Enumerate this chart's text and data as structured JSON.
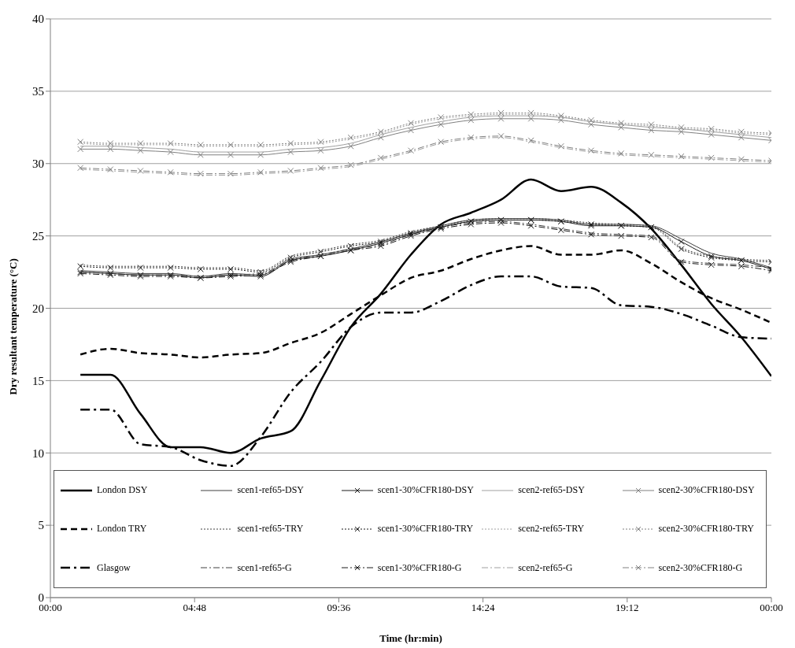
{
  "chart_data": {
    "type": "line",
    "xlabel": "Time (hr:min)",
    "ylabel": "Dry resultant temperature (°C)",
    "x": [
      1,
      2,
      3,
      4,
      5,
      6,
      7,
      8,
      9,
      10,
      11,
      12,
      13,
      14,
      15,
      16,
      17,
      18,
      19,
      20,
      21,
      22,
      23,
      24
    ],
    "xlim": [
      0,
      24
    ],
    "xticks": [
      {
        "value": 0,
        "label": "00:00"
      },
      {
        "value": 4.8,
        "label": "04:48"
      },
      {
        "value": 9.6,
        "label": "09:36"
      },
      {
        "value": 14.4,
        "label": "14:24"
      },
      {
        "value": 19.2,
        "label": "19:12"
      },
      {
        "value": 24,
        "label": "00:00"
      }
    ],
    "ylim": [
      0,
      40
    ],
    "yticks": [
      0,
      5,
      10,
      15,
      20,
      25,
      30,
      35,
      40
    ],
    "grid": "y",
    "legend": "bottom",
    "series": [
      {
        "name": "London DSY",
        "color": "#000000",
        "line_style": "solid",
        "marker": "none",
        "values": [
          15.4,
          15.4,
          12.7,
          10.4,
          10.4,
          10.0,
          11.0,
          11.5,
          15.0,
          18.7,
          21.0,
          23.7,
          25.8,
          26.6,
          27.5,
          28.9,
          28.1,
          28.4,
          27.3,
          25.5,
          23.0,
          20.3,
          18.0,
          15.3
        ]
      },
      {
        "name": "London TRY",
        "color": "#000000",
        "line_style": "dashed",
        "marker": "none",
        "values": [
          16.8,
          17.2,
          16.9,
          16.8,
          16.6,
          16.8,
          16.9,
          17.6,
          18.3,
          19.6,
          20.9,
          22.1,
          22.6,
          23.4,
          24.0,
          24.3,
          23.7,
          23.7,
          24.0,
          23.1,
          21.8,
          20.7,
          19.9,
          19.0
        ]
      },
      {
        "name": "Glasgow",
        "color": "#000000",
        "line_style": "dashdot",
        "marker": "none",
        "values": [
          13.0,
          13.0,
          10.6,
          10.4,
          9.5,
          9.1,
          11.1,
          14.2,
          16.3,
          18.7,
          19.7,
          19.7,
          20.5,
          21.6,
          22.2,
          22.2,
          21.5,
          21.4,
          20.2,
          20.1,
          19.6,
          18.8,
          18.0,
          17.9
        ]
      },
      {
        "name": "scen1-ref65-DSY",
        "color": "#404040",
        "line_style": "solid",
        "marker": "none",
        "values": [
          22.6,
          22.5,
          22.4,
          22.4,
          22.2,
          22.4,
          22.3,
          23.4,
          23.7,
          24.1,
          24.6,
          25.2,
          25.7,
          26.1,
          26.2,
          26.2,
          26.1,
          25.8,
          25.8,
          25.7,
          24.8,
          23.8,
          23.4,
          22.8
        ]
      },
      {
        "name": "scen1-ref65-TRY",
        "color": "#404040",
        "line_style": "dotted",
        "marker": "none",
        "values": [
          23.0,
          22.9,
          22.9,
          22.9,
          22.8,
          22.8,
          22.6,
          23.6,
          24.0,
          24.4,
          24.7,
          25.3,
          25.7,
          26.1,
          26.2,
          26.2,
          26.1,
          25.9,
          25.8,
          25.7,
          24.2,
          23.6,
          23.4,
          23.3
        ]
      },
      {
        "name": "scen1-ref65-G",
        "color": "#404040",
        "line_style": "dashdot",
        "marker": "none",
        "values": [
          22.5,
          22.4,
          22.3,
          22.3,
          22.2,
          22.3,
          22.4,
          23.3,
          23.7,
          24.1,
          24.4,
          25.1,
          25.6,
          25.9,
          26.0,
          25.8,
          25.5,
          25.2,
          25.1,
          25.0,
          23.3,
          23.1,
          23.0,
          22.8
        ]
      },
      {
        "name": "scen1-30%CFR180-DSY",
        "color": "#1a1a1a",
        "line_style": "solid",
        "marker": "cross",
        "values": [
          22.5,
          22.4,
          22.3,
          22.3,
          22.1,
          22.3,
          22.2,
          23.3,
          23.6,
          24.0,
          24.5,
          25.1,
          25.6,
          26.0,
          26.1,
          26.1,
          26.0,
          25.7,
          25.7,
          25.6,
          24.6,
          23.6,
          23.3,
          22.7
        ]
      },
      {
        "name": "scen1-30%CFR180-TRY",
        "color": "#1a1a1a",
        "line_style": "dotted",
        "marker": "cross",
        "values": [
          22.9,
          22.8,
          22.8,
          22.8,
          22.7,
          22.7,
          22.5,
          23.5,
          23.9,
          24.3,
          24.6,
          25.2,
          25.6,
          26.0,
          26.1,
          26.1,
          26.0,
          25.8,
          25.7,
          25.6,
          24.1,
          23.5,
          23.3,
          23.2
        ]
      },
      {
        "name": "scen1-30%CFR180-G",
        "color": "#1a1a1a",
        "line_style": "dashdot",
        "marker": "cross",
        "values": [
          22.4,
          22.3,
          22.2,
          22.2,
          22.1,
          22.2,
          22.3,
          23.2,
          23.6,
          24.0,
          24.3,
          25.0,
          25.5,
          25.8,
          25.9,
          25.7,
          25.4,
          25.1,
          25.0,
          24.9,
          23.2,
          23.0,
          22.9,
          22.6
        ]
      },
      {
        "name": "scen2-ref65-DSY",
        "color": "#a0a0a0",
        "line_style": "solid",
        "marker": "none",
        "values": [
          31.2,
          31.2,
          31.1,
          31.0,
          30.8,
          30.8,
          30.8,
          31.0,
          31.1,
          31.4,
          32.0,
          32.5,
          32.9,
          33.2,
          33.3,
          33.3,
          33.2,
          32.9,
          32.7,
          32.5,
          32.4,
          32.2,
          32.0,
          31.8
        ]
      },
      {
        "name": "scen2-ref65-TRY",
        "color": "#a0a0a0",
        "line_style": "dotted",
        "marker": "none",
        "values": [
          31.4,
          31.3,
          31.3,
          31.3,
          31.2,
          31.2,
          31.2,
          31.3,
          31.4,
          31.7,
          32.1,
          32.7,
          33.1,
          33.3,
          33.4,
          33.4,
          33.2,
          32.9,
          32.7,
          32.6,
          32.4,
          32.3,
          32.1,
          32.0
        ]
      },
      {
        "name": "scen2-ref65-G",
        "color": "#a0a0a0",
        "line_style": "dashdot",
        "marker": "none",
        "values": [
          29.6,
          29.5,
          29.4,
          29.3,
          29.2,
          29.2,
          29.3,
          29.4,
          29.6,
          29.8,
          30.3,
          30.8,
          31.4,
          31.7,
          31.8,
          31.5,
          31.1,
          30.8,
          30.6,
          30.5,
          30.4,
          30.3,
          30.2,
          30.1
        ]
      },
      {
        "name": "scen2-30%CFR180-DSY",
        "color": "#808080",
        "line_style": "solid",
        "marker": "cross",
        "values": [
          31.0,
          31.0,
          30.9,
          30.8,
          30.6,
          30.6,
          30.6,
          30.8,
          30.9,
          31.2,
          31.8,
          32.3,
          32.7,
          33.0,
          33.1,
          33.1,
          33.0,
          32.7,
          32.5,
          32.3,
          32.2,
          32.0,
          31.8,
          31.6
        ]
      },
      {
        "name": "scen2-30%CFR180-TRY",
        "color": "#808080",
        "line_style": "dotted",
        "marker": "cross",
        "values": [
          31.5,
          31.4,
          31.4,
          31.4,
          31.3,
          31.3,
          31.3,
          31.4,
          31.5,
          31.8,
          32.2,
          32.8,
          33.2,
          33.4,
          33.5,
          33.5,
          33.3,
          33.0,
          32.8,
          32.7,
          32.5,
          32.4,
          32.2,
          32.1
        ]
      },
      {
        "name": "scen2-30%CFR180-G",
        "color": "#808080",
        "line_style": "dashdot",
        "marker": "cross",
        "values": [
          29.7,
          29.6,
          29.5,
          29.4,
          29.3,
          29.3,
          29.4,
          29.5,
          29.7,
          29.9,
          30.4,
          30.9,
          31.5,
          31.8,
          31.9,
          31.6,
          31.2,
          30.9,
          30.7,
          30.6,
          30.5,
          30.4,
          30.3,
          30.2
        ]
      }
    ]
  }
}
